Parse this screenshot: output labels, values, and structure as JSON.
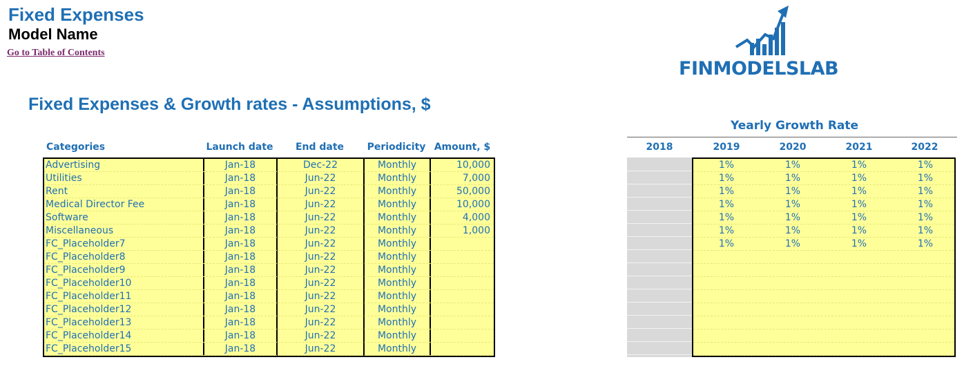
{
  "header": {
    "title": "Fixed Expenses",
    "model_name": "Model Name",
    "toc_link": "Go to Table of Contents"
  },
  "logo": {
    "text": "FINMODELSLAB",
    "icon": "rising-bars-arrow-logo"
  },
  "section_title": "Fixed Expenses & Growth rates - Assumptions, $",
  "colors": {
    "accent": "#1f6fb4",
    "cell_fill": "#ffff99",
    "grey_fill": "#d9d9d9",
    "link": "#7b2a6e"
  },
  "assumptions": {
    "columns": [
      "Categories",
      "Launch date",
      "End date",
      "Periodicity",
      "Amount, $"
    ],
    "rows": [
      [
        "Advertising",
        "Jan-18",
        "Dec-22",
        "Monthly",
        "10,000"
      ],
      [
        "Utilities",
        "Jan-18",
        "Jun-22",
        "Monthly",
        "7,000"
      ],
      [
        "Rent",
        "Jan-18",
        "Jun-22",
        "Monthly",
        "50,000"
      ],
      [
        "Medical Director Fee",
        "Jan-18",
        "Jun-22",
        "Monthly",
        "10,000"
      ],
      [
        "Software",
        "Jan-18",
        "Jun-22",
        "Monthly",
        "4,000"
      ],
      [
        "Miscellaneous",
        "Jan-18",
        "Jun-22",
        "Monthly",
        "1,000"
      ],
      [
        "FC_Placeholder7",
        "Jan-18",
        "Jun-22",
        "Monthly",
        ""
      ],
      [
        "FC_Placeholder8",
        "Jan-18",
        "Jun-22",
        "Monthly",
        ""
      ],
      [
        "FC_Placeholder9",
        "Jan-18",
        "Jun-22",
        "Monthly",
        ""
      ],
      [
        "FC_Placeholder10",
        "Jan-18",
        "Jun-22",
        "Monthly",
        ""
      ],
      [
        "FC_Placeholder11",
        "Jan-18",
        "Jun-22",
        "Monthly",
        ""
      ],
      [
        "FC_Placeholder12",
        "Jan-18",
        "Jun-22",
        "Monthly",
        ""
      ],
      [
        "FC_Placeholder13",
        "Jan-18",
        "Jun-22",
        "Monthly",
        ""
      ],
      [
        "FC_Placeholder14",
        "Jan-18",
        "Jun-22",
        "Monthly",
        ""
      ],
      [
        "FC_Placeholder15",
        "Jan-18",
        "Jun-22",
        "Monthly",
        ""
      ]
    ]
  },
  "growth": {
    "title": "Yearly Growth Rate",
    "years": [
      "2018",
      "2019",
      "2020",
      "2021",
      "2022"
    ],
    "rows": [
      [
        "1%",
        "1%",
        "1%",
        "1%"
      ],
      [
        "1%",
        "1%",
        "1%",
        "1%"
      ],
      [
        "1%",
        "1%",
        "1%",
        "1%"
      ],
      [
        "1%",
        "1%",
        "1%",
        "1%"
      ],
      [
        "1%",
        "1%",
        "1%",
        "1%"
      ],
      [
        "1%",
        "1%",
        "1%",
        "1%"
      ],
      [
        "1%",
        "1%",
        "1%",
        "1%"
      ],
      [
        "",
        "",
        "",
        ""
      ],
      [
        "",
        "",
        "",
        ""
      ],
      [
        "",
        "",
        "",
        ""
      ],
      [
        "",
        "",
        "",
        ""
      ],
      [
        "",
        "",
        "",
        ""
      ],
      [
        "",
        "",
        "",
        ""
      ],
      [
        "",
        "",
        "",
        ""
      ],
      [
        "",
        "",
        "",
        ""
      ]
    ]
  }
}
